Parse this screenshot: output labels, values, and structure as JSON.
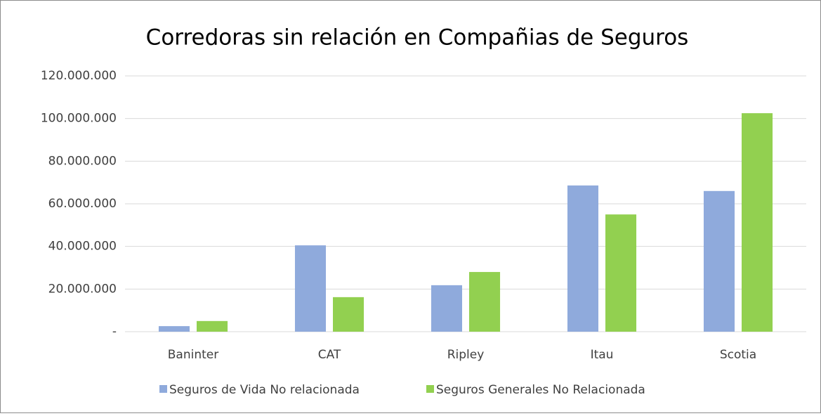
{
  "chart_data": {
    "type": "bar",
    "title": "Corredoras sin relación en Compañias de Seguros",
    "categories": [
      "Baninter",
      "CAT",
      "Ripley",
      "Itau",
      "Scotia"
    ],
    "series": [
      {
        "name": "Seguros de Vida No relacionada",
        "color": "#8faadc",
        "values": [
          2600000,
          40500000,
          21800000,
          68600000,
          66000000
        ]
      },
      {
        "name": "Seguros Generales No Relacionada",
        "color": "#92d050",
        "values": [
          5000000,
          16200000,
          28000000,
          55000000,
          102500000
        ]
      }
    ],
    "ylim": [
      0,
      120000000
    ],
    "yticks": [
      {
        "value": 0,
        "label": "-"
      },
      {
        "value": 20000000,
        "label": "20.000.000"
      },
      {
        "value": 40000000,
        "label": "40.000.000"
      },
      {
        "value": 60000000,
        "label": "60.000.000"
      },
      {
        "value": 80000000,
        "label": "80.000.000"
      },
      {
        "value": 100000000,
        "label": "100.000.000"
      },
      {
        "value": 120000000,
        "label": "120.000.000"
      }
    ],
    "grid": true,
    "legend": "bottom"
  }
}
